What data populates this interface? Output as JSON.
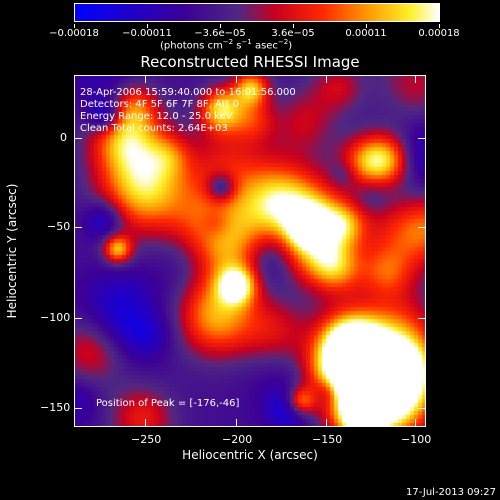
{
  "colorbar": {
    "tick_labels": [
      "−0.00018",
      "−0.00011",
      "−3.6e−05",
      "3.6e−05",
      "0.00011",
      "0.00018"
    ],
    "units_prefix": "(photons cm",
    "units_exp1": "−2",
    "units_mid": " s",
    "units_exp2": "−1",
    "units_mid2": " asec",
    "units_exp3": "−2",
    "units_suffix": ")",
    "colors": [
      "#0000ff",
      "#4b0082",
      "#ff0000",
      "#ff8c00",
      "#ffff00",
      "#ffffff"
    ]
  },
  "title": "Reconstructed RHESSI Image",
  "annotations": [
    "28-Apr-2006 15:59:40.000 to 16:01:56.000",
    "Detectors: 4F 5F 6F 7F 8F, Att 0",
    "Energy Range: 12.0 - 25.0 keV",
    "Clean    Total counts: 2.64E+03"
  ],
  "peak_text": "Position of Peak = [-176,-46]",
  "axes": {
    "x_label": "Heliocentric X (arcsec)",
    "y_label": "Heliocentric Y (arcsec)",
    "x_ticks": [
      "−250",
      "−200",
      "−150",
      "−100"
    ],
    "y_ticks": [
      "0",
      "−50",
      "−100",
      "−150"
    ]
  },
  "footer_date": "17-Jul-2013 09:27"
}
